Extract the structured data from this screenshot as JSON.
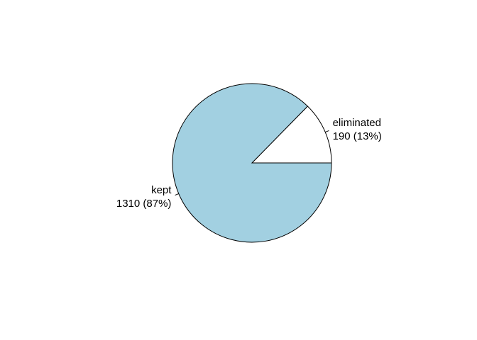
{
  "chart_data": {
    "type": "pie",
    "title": "",
    "slices": [
      {
        "label": "eliminated",
        "value": 190,
        "value_text": "190 (13%)",
        "percent": 13,
        "color": "#ffffff"
      },
      {
        "label": "kept",
        "value": 1310,
        "value_text": "1310 (87%)",
        "percent": 87,
        "color": "#a2d0e1"
      }
    ],
    "start_angle_degrees": 0,
    "direction": "counterclockwise",
    "legend": "none",
    "border_color": "#000000"
  }
}
